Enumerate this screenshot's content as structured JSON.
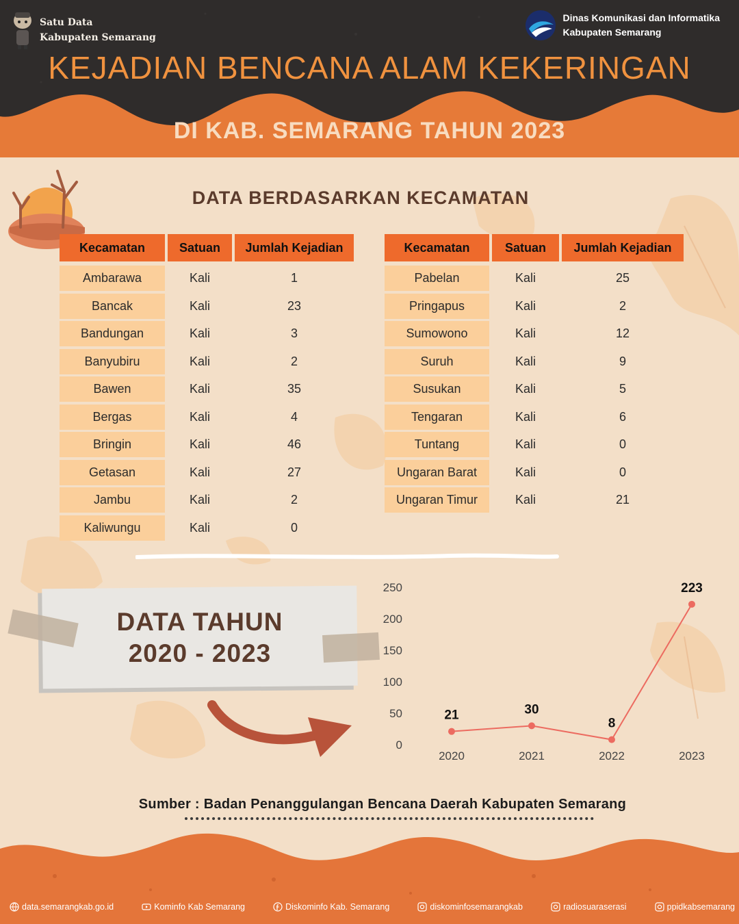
{
  "header": {
    "brand_left_line1": "Satu Data",
    "brand_left_line2": "Kabupaten Semarang",
    "brand_right_line1": "Dinas Komunikasi dan Informatika",
    "brand_right_line2": "Kabupaten Semarang",
    "title": "KEJADIAN BENCANA ALAM KEKERINGAN",
    "subtitle": "DI KAB. SEMARANG TAHUN 2023"
  },
  "section_title": "DATA BERDASARKAN KECAMATAN",
  "table": {
    "headers": [
      "Kecamatan",
      "Satuan",
      "Jumlah Kejadian"
    ],
    "left_rows": [
      [
        "Ambarawa",
        "Kali",
        "1"
      ],
      [
        "Bancak",
        "Kali",
        "23"
      ],
      [
        "Bandungan",
        "Kali",
        "3"
      ],
      [
        "Banyubiru",
        "Kali",
        "2"
      ],
      [
        "Bawen",
        "Kali",
        "35"
      ],
      [
        "Bergas",
        "Kali",
        "4"
      ],
      [
        "Bringin",
        "Kali",
        "46"
      ],
      [
        "Getasan",
        "Kali",
        "27"
      ],
      [
        "Jambu",
        "Kali",
        "2"
      ],
      [
        "Kaliwungu",
        "Kali",
        "0"
      ]
    ],
    "right_rows": [
      [
        "Pabelan",
        "Kali",
        "25"
      ],
      [
        "Pringapus",
        "Kali",
        "2"
      ],
      [
        "Sumowono",
        "Kali",
        "12"
      ],
      [
        "Suruh",
        "Kali",
        "9"
      ],
      [
        "Susukan",
        "Kali",
        "5"
      ],
      [
        "Tengaran",
        "Kali",
        "6"
      ],
      [
        "Tuntang",
        "Kali",
        "0"
      ],
      [
        "Ungaran Barat",
        "Kali",
        "0"
      ],
      [
        "Ungaran Timur",
        "Kali",
        "21"
      ]
    ]
  },
  "card": {
    "line1": "DATA TAHUN",
    "line2": "2020 - 2023"
  },
  "chart_data": {
    "type": "line",
    "x": [
      "2020",
      "2021",
      "2022",
      "2023"
    ],
    "series": [
      {
        "values": [
          21,
          30,
          8,
          223
        ]
      }
    ],
    "ylim": [
      0,
      250
    ],
    "yticks": [
      0,
      50,
      100,
      150,
      200,
      250
    ],
    "grid": false,
    "data_labels": true,
    "line_color": "#ec6b60"
  },
  "source": "Sumber : Badan Penanggulangan Bencana Daerah Kabupaten Semarang",
  "footer": {
    "web": "data.semarangkab.go.id",
    "youtube": "Kominfo Kab Semarang",
    "facebook": "Diskominfo Kab. Semarang",
    "instagram1": "diskominfosemarangkab",
    "instagram2": "radiosuaraserasi",
    "instagram3": "ppidkabsemarang"
  }
}
